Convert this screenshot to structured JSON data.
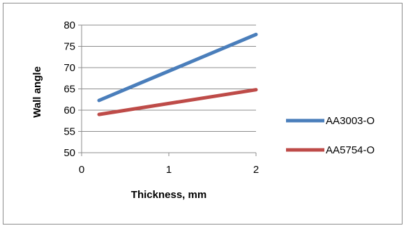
{
  "chart_data": {
    "type": "line",
    "xlabel": "Thickness, mm",
    "ylabel": "Wall angle",
    "xlim": [
      0,
      2
    ],
    "ylim": [
      50,
      80
    ],
    "x_ticks": [
      "0",
      "1",
      "2"
    ],
    "y_ticks": [
      "50",
      "55",
      "60",
      "65",
      "70",
      "75",
      "80"
    ],
    "grid": "horizontal",
    "legend_position": "right",
    "series": [
      {
        "name": "AA3003-O",
        "color": "#4a7ebb",
        "x": [
          0.2,
          2
        ],
        "y": [
          62.3,
          77.8
        ]
      },
      {
        "name": "AA5754-O",
        "color": "#be4b48",
        "x": [
          0.2,
          2
        ],
        "y": [
          59.0,
          64.8
        ]
      }
    ]
  }
}
